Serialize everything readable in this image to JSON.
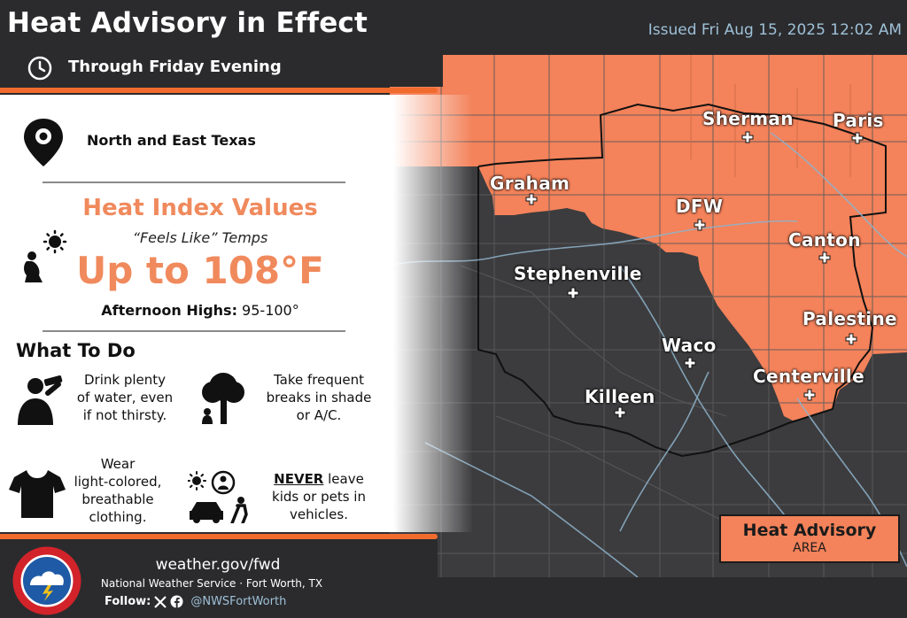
{
  "header": {
    "title": "Heat Advisory in Effect",
    "issued": "Issued Fri Aug 15, 2025 12:02 AM",
    "subtitle": "Through Friday Evening"
  },
  "location": "North and East Texas",
  "heat_index": {
    "title": "Heat Index Values",
    "feels_like": "“Feels Like” Temps",
    "value": "Up to 108°F",
    "highs_label": "Afternoon Highs:",
    "highs_value": " 95-100°"
  },
  "what_to_do": {
    "title": "What To Do",
    "tips": [
      {
        "line1": "Drink plenty",
        "line2": "of water, even",
        "line3": "if not thirsty.",
        "icon": "drinking-person-icon"
      },
      {
        "line1": "Take frequent",
        "line2": "breaks in shade",
        "line3": "or A/C.",
        "icon": "tree-shade-icon"
      },
      {
        "line1": "Wear",
        "line2": "light-colored,",
        "line3": "breathable",
        "line4": "clothing.",
        "icon": "tshirt-icon"
      },
      {
        "line1": "NEVER",
        "line1b": " leave",
        "line2": "kids or pets in",
        "line3": "vehicles.",
        "icon": "hot-car-icon"
      }
    ]
  },
  "footer": {
    "url": "weather.gov/fwd",
    "agency": "National Weather Service · Fort Worth, TX",
    "follow": "Follow:",
    "handle": "@NWSFortWorth",
    "logo_text": "NATIONAL WEATHER SERVICE"
  },
  "map": {
    "cities": [
      "Sherman",
      "Paris",
      "Graham",
      "DFW",
      "Canton",
      "Stephenville",
      "Palestine",
      "Waco",
      "Centerville",
      "Killeen"
    ]
  },
  "legend": {
    "title": "Heat Advisory",
    "subtitle": "AREA"
  },
  "colors": {
    "advisory_orange": "#f4825a",
    "accent_orange": "#f26b2e",
    "dark_background": "#2b2b2d",
    "county_dark": "#3c3c3e",
    "river_blue": "#8fb3cc",
    "issued_text": "#9ec0d8"
  }
}
